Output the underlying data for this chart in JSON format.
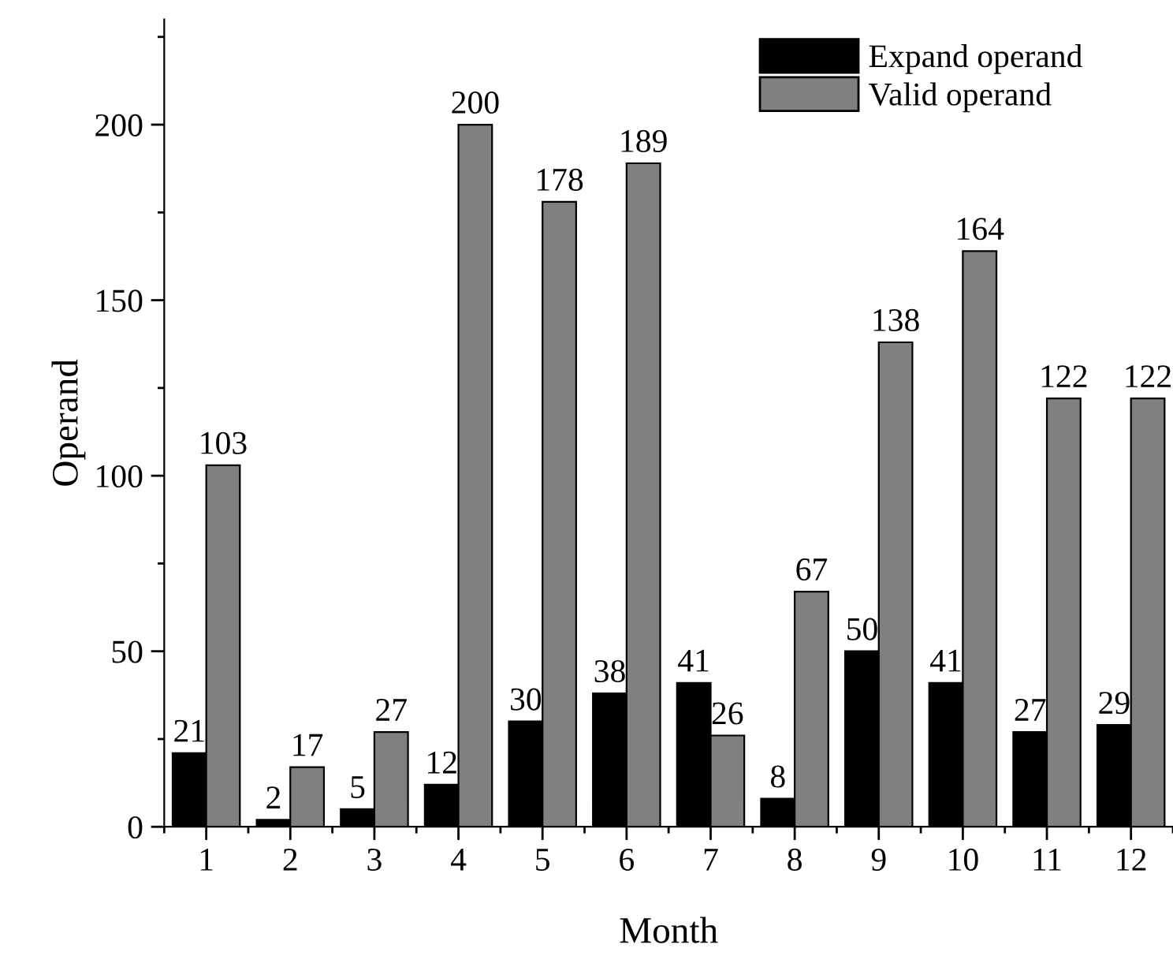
{
  "chart_data": {
    "type": "bar",
    "xlabel": "Month",
    "ylabel": "Operand",
    "categories": [
      "1",
      "2",
      "3",
      "4",
      "5",
      "6",
      "7",
      "8",
      "9",
      "10",
      "11",
      "12"
    ],
    "series": [
      {
        "name": "Expand operand",
        "color": "#000000",
        "values": [
          21,
          2,
          5,
          12,
          30,
          38,
          41,
          8,
          50,
          41,
          27,
          29
        ]
      },
      {
        "name": "Valid operand",
        "color": "#808080",
        "values": [
          103,
          17,
          27,
          200,
          178,
          189,
          26,
          67,
          138,
          164,
          122,
          122
        ]
      }
    ],
    "ylim": [
      0,
      230
    ],
    "yticks": [
      0,
      50,
      100,
      150,
      200
    ],
    "data_labels": true,
    "legend": "top right",
    "grid": false
  }
}
